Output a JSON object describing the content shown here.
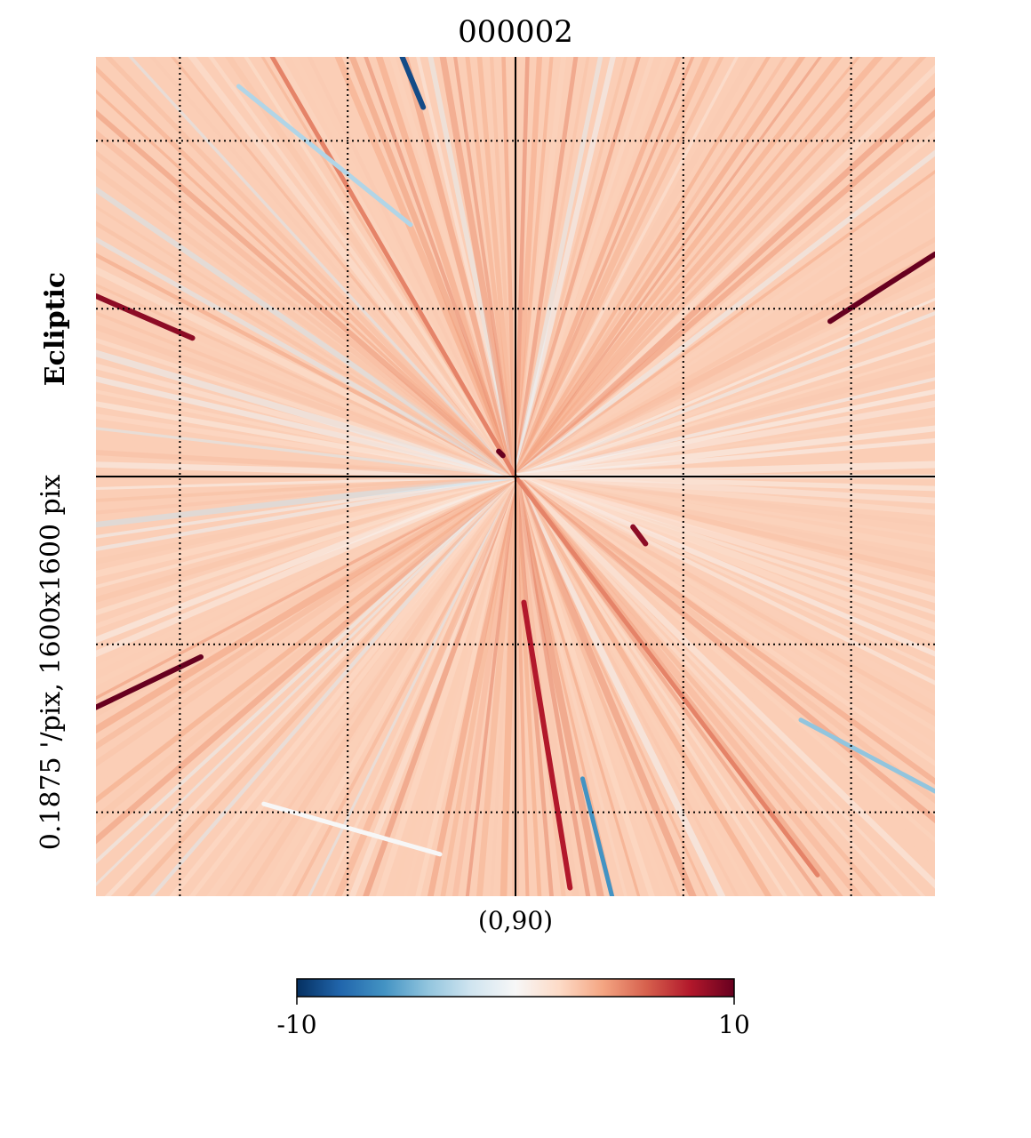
{
  "chart_data": {
    "type": "heatmap",
    "title": "000002",
    "center_label": "(0,90)",
    "side_label": "0.1875 '/pix,   1600x1600 pix",
    "frame_label": "Ecliptic",
    "colormap": "RdBu_r",
    "colorbar": {
      "min_label": "-10",
      "max_label": "10",
      "vmin": -10,
      "vmax": 10
    },
    "graticule": "dotted",
    "axes_lines": "solid center cross",
    "background_value": 2.5,
    "streaks": [
      {
        "from": [
          -0.58,
          -1.0
        ],
        "to": [
          0.0,
          0.0
        ],
        "value": 5
      },
      {
        "from": [
          0.0,
          0.0
        ],
        "to": [
          0.72,
          0.95
        ],
        "value": 5
      },
      {
        "from": [
          -0.27,
          -1.0
        ],
        "to": [
          -0.22,
          -0.88
        ],
        "value": -9
      },
      {
        "from": [
          1.0,
          -0.53
        ],
        "to": [
          0.75,
          -0.37
        ],
        "value": 10
      },
      {
        "from": [
          -1.0,
          -0.43
        ],
        "to": [
          -0.77,
          -0.33
        ],
        "value": 9
      },
      {
        "from": [
          -1.0,
          0.55
        ],
        "to": [
          -0.75,
          0.43
        ],
        "value": 10
      },
      {
        "from": [
          0.02,
          0.3
        ],
        "to": [
          0.13,
          0.98
        ],
        "value": 8
      },
      {
        "from": [
          0.16,
          0.72
        ],
        "to": [
          0.23,
          1.0
        ],
        "value": -6
      },
      {
        "from": [
          0.28,
          0.12
        ],
        "to": [
          0.31,
          0.16
        ],
        "value": 9
      },
      {
        "from": [
          -0.04,
          -0.06
        ],
        "to": [
          -0.03,
          -0.05
        ],
        "value": 10
      },
      {
        "from": [
          -0.66,
          -0.93
        ],
        "to": [
          -0.25,
          -0.6
        ],
        "value": -3
      },
      {
        "from": [
          0.68,
          0.58
        ],
        "to": [
          1.0,
          0.75
        ],
        "value": -4
      },
      {
        "from": [
          -0.18,
          0.9
        ],
        "to": [
          -0.6,
          0.78
        ],
        "value": 0
      }
    ]
  }
}
